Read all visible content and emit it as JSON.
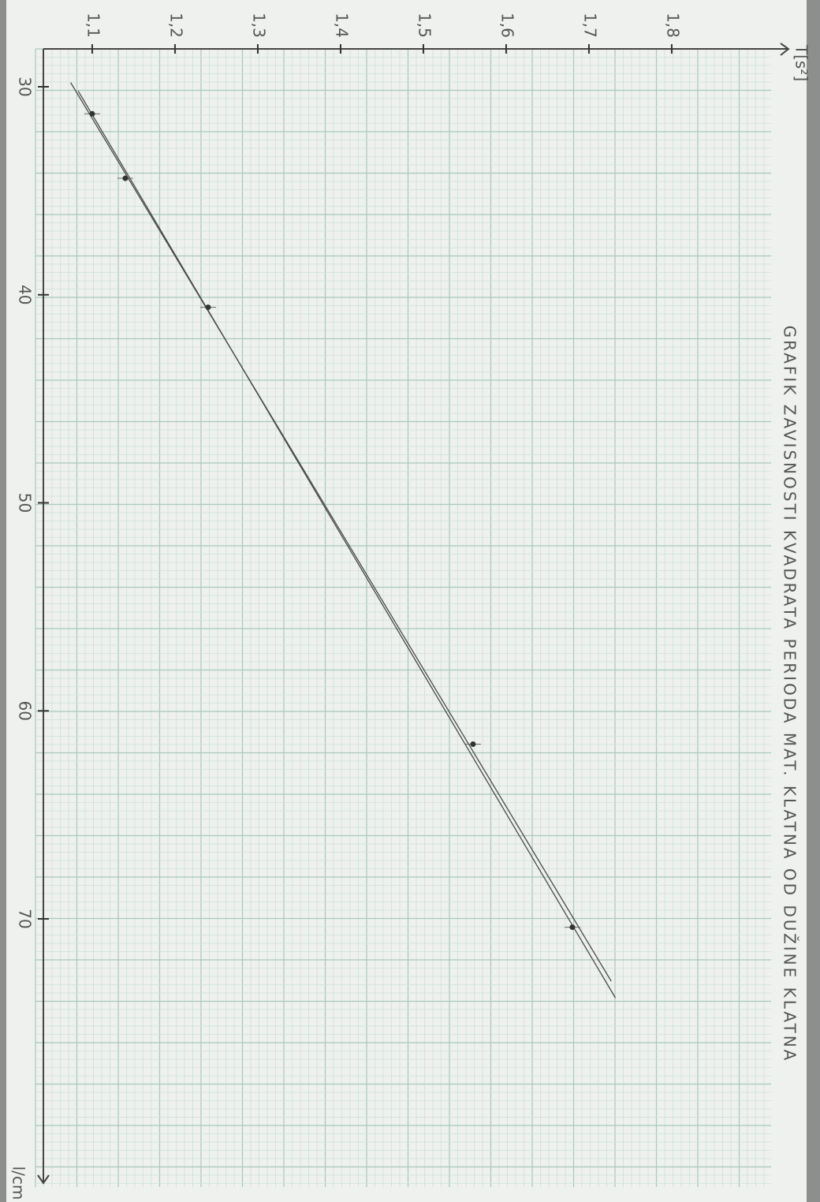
{
  "chart_data": {
    "type": "scatter",
    "title": "GRAFIK ZAVISNOSTI KVADRATA PERIODA MAT. KLATNA OD DUŽINE KLATNA",
    "y_label": "T[s²]",
    "x_label": "l/cm",
    "x": [
      31.3,
      34.4,
      40.6,
      61.6,
      70.4
    ],
    "values": [
      1.1,
      1.14,
      1.24,
      1.56,
      1.68
    ],
    "color": "#333333",
    "lines": [
      {
        "x": [
          29.8,
          73.0
        ],
        "values": [
          1.074,
          1.727
        ]
      },
      {
        "x": [
          30.2,
          73.8
        ],
        "values": [
          1.083,
          1.732
        ]
      }
    ],
    "line_color": "#4a4a4a",
    "xlim": [
      28.18,
      82.7
    ],
    "xticks": [
      30,
      40,
      50,
      60,
      70
    ],
    "ylim": [
      1.041,
      1.941
    ],
    "yticks": [
      {
        "value": 1.1,
        "label": "1,1"
      },
      {
        "value": 1.2,
        "label": "1,2"
      },
      {
        "value": 1.3,
        "label": "1,3"
      },
      {
        "value": 1.4,
        "label": "1,4"
      },
      {
        "value": 1.5,
        "label": "1,5"
      },
      {
        "value": 1.6,
        "label": "1,6"
      },
      {
        "value": 1.7,
        "label": "1,7"
      },
      {
        "value": 1.8,
        "label": "1,8"
      }
    ]
  }
}
